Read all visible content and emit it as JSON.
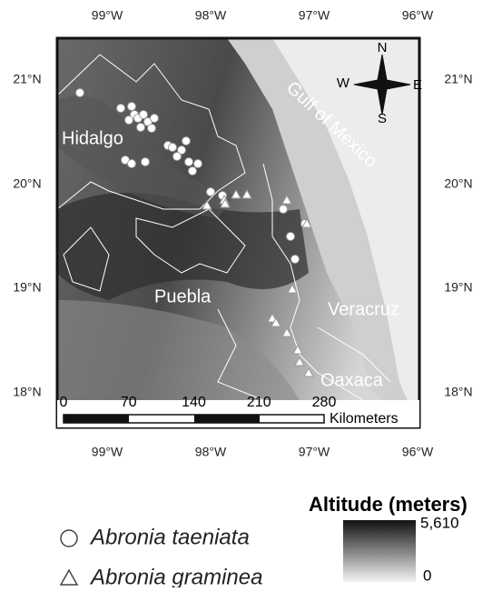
{
  "map": {
    "lon_labels": [
      "99°W",
      "98°W",
      "97°W",
      "96°W"
    ],
    "lat_labels": [
      "21°N",
      "20°N",
      "19°N",
      "18°N"
    ],
    "regions": [
      "Hidalgo",
      "Puebla",
      "Veracruz",
      "Oaxaca",
      "Gulf of Mexico"
    ],
    "compass": {
      "n": "N",
      "s": "S",
      "e": "E",
      "w": "W"
    },
    "scale_bar": {
      "ticks": [
        0,
        70,
        140,
        210,
        280
      ],
      "unit": "Kilometers"
    },
    "legend": [
      "Abronia taeniata",
      "Abronia graminea"
    ],
    "colorbar": {
      "title": "Altitude (meters)",
      "max": "5,610",
      "min": "0"
    }
  }
}
